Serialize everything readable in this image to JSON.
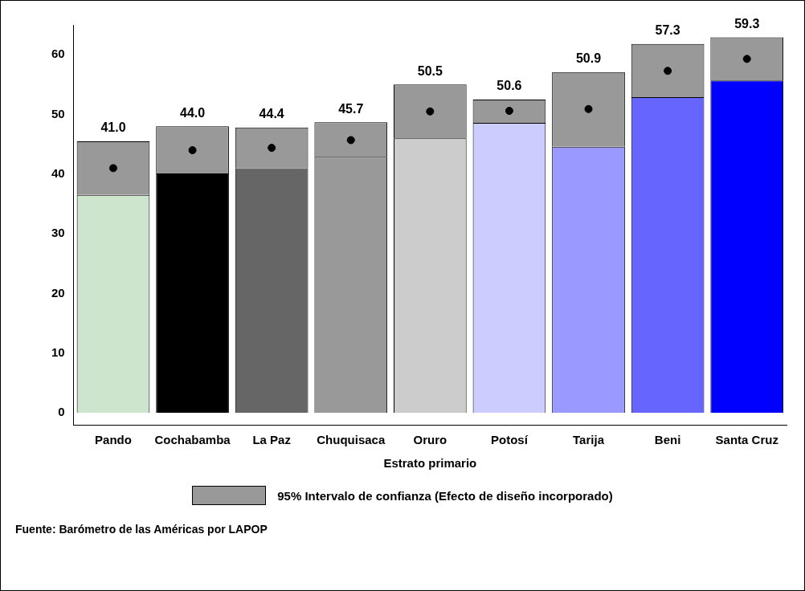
{
  "chart_data": {
    "type": "bar",
    "xlabel": "Estrato primario",
    "categories": [
      "Pando",
      "Cochabamba",
      "La Paz",
      "Chuquisaca",
      "Oruro",
      "Potosí",
      "Tarija",
      "Beni",
      "Santa Cruz"
    ],
    "stacked": true,
    "series": [
      {
        "colors": [
          "#cce5cc",
          "#000000",
          "#666666",
          "#999999",
          "#cccccc",
          "#ccccff",
          "#9999ff",
          "#6666ff",
          "#0000ff"
        ],
        "values": [
          36.5,
          40.1,
          41.0,
          42.9,
          46.0,
          48.6,
          44.6,
          52.9,
          55.7
        ]
      },
      {
        "name": "95% Intervalo de confianza (Efecto de diseño incorporado)",
        "color": "#999999",
        "values": [
          9.0,
          7.9,
          6.8,
          5.8,
          9.0,
          3.9,
          12.5,
          8.9,
          7.2
        ]
      },
      {
        "type": "scatter",
        "color": "#000000",
        "marker": "circle",
        "x": [
          "Pando",
          "Cochabamba",
          "La Paz",
          "Chuquisaca",
          "Oruro",
          "Potosí",
          "Tarija",
          "Beni",
          "Santa Cruz"
        ],
        "values": [
          41.0,
          44.0,
          44.4,
          45.7,
          50.5,
          50.6,
          50.9,
          57.3,
          59.3
        ],
        "value_labels": [
          "41.0",
          "44.0",
          "44.4",
          "45.7",
          "50.5",
          "50.6",
          "50.9",
          "57.3",
          "59.3"
        ]
      }
    ],
    "ylim": [
      -2,
      65
    ],
    "yticks": [
      0,
      10,
      20,
      30,
      40,
      50,
      60
    ],
    "grid": false,
    "legend": "bottom",
    "annotations": [
      "Fuente: Barómetro de las Américas por LAPOP"
    ]
  }
}
